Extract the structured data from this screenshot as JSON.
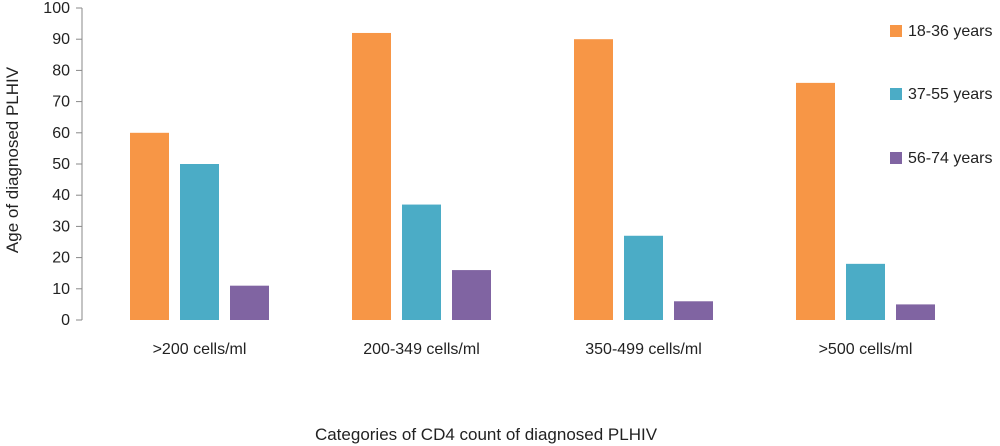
{
  "chart_data": {
    "type": "bar",
    "title": "",
    "xlabel": "Categories of CD4 count of diagnosed PLHIV",
    "ylabel": "Age of diagnosed PLHIV",
    "ylim": [
      0,
      100
    ],
    "yticks": [
      0,
      10,
      20,
      30,
      40,
      50,
      60,
      70,
      80,
      90,
      100
    ],
    "grid": false,
    "legend_position": "right",
    "categories": [
      ">200 cells/ml",
      "200-349 cells/ml",
      "350-499 cells/ml",
      ">500 cells/ml"
    ],
    "series": [
      {
        "name": "18-36 years",
        "color": "#F79646",
        "values": [
          60,
          92,
          90,
          76
        ]
      },
      {
        "name": "37-55 years",
        "color": "#4BACC6",
        "values": [
          50,
          37,
          27,
          18
        ]
      },
      {
        "name": "56-74 years",
        "color": "#8064A2",
        "values": [
          11,
          16,
          6,
          5
        ]
      }
    ]
  }
}
